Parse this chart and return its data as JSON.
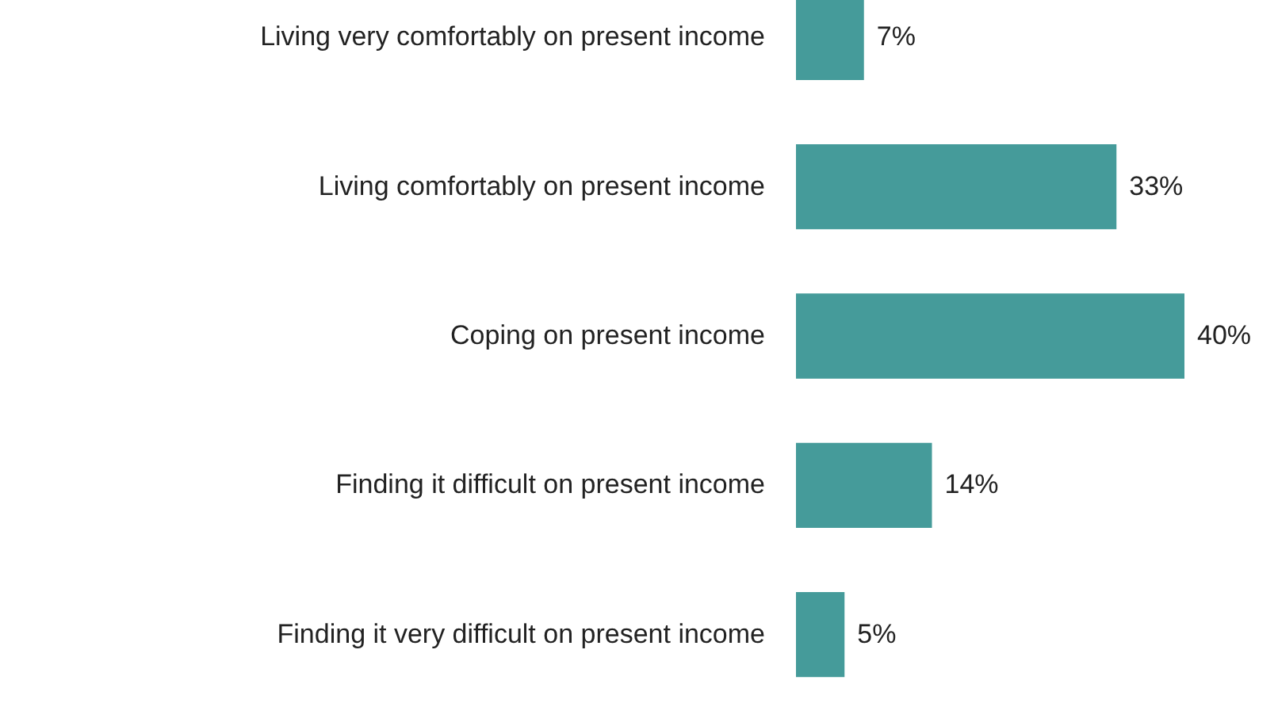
{
  "chart_data": {
    "type": "bar",
    "orientation": "horizontal",
    "categories": [
      "Living very comfortably on present income",
      "Living comfortably on present income",
      "Coping on present income",
      "Finding it difficult on present income",
      "Finding it very difficult on present income"
    ],
    "values": [
      7,
      33,
      40,
      14,
      5
    ],
    "value_labels": [
      "7%",
      "33%",
      "40%",
      "14%",
      "5%"
    ],
    "color": "#459b9a"
  }
}
